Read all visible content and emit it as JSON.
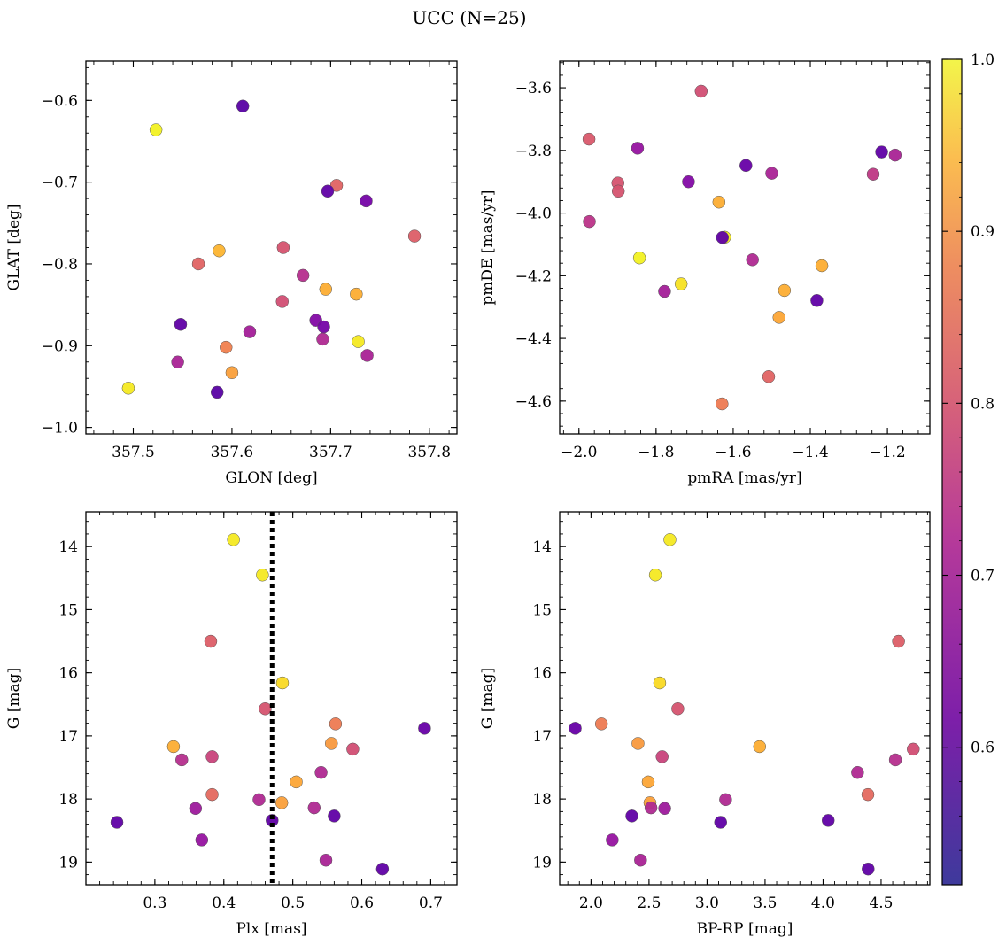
{
  "figure": {
    "title": "UCC (N=25)"
  },
  "chart_data": [
    {
      "type": "scatter",
      "xlabel": "GLON [deg]",
      "ylabel": "GLAT [deg]",
      "xlim": [
        357.452,
        357.828
      ],
      "ylim": [
        -1.008,
        -0.552
      ],
      "y_inverted": false,
      "xticks": [
        357.5,
        357.6,
        357.7,
        357.8
      ],
      "xtick_labels": [
        "357.5",
        "357.6",
        "357.7",
        "357.8"
      ],
      "yticks": [
        -0.6,
        -0.7,
        -0.8,
        -0.9,
        -1.0
      ],
      "ytick_labels": [
        "−0.6",
        "−0.7",
        "−0.8",
        "−0.9",
        "−1.0"
      ],
      "points": [
        {
          "x": 357.523,
          "y": -0.636,
          "c": 0.99
        },
        {
          "x": 357.495,
          "y": -0.952,
          "c": 0.98
        },
        {
          "x": 357.728,
          "y": -0.895,
          "c": 0.98
        },
        {
          "x": 357.587,
          "y": -0.784,
          "c": 0.91
        },
        {
          "x": 357.695,
          "y": -0.831,
          "c": 0.9
        },
        {
          "x": 357.726,
          "y": -0.837,
          "c": 0.9
        },
        {
          "x": 357.6,
          "y": -0.933,
          "c": 0.88
        },
        {
          "x": 357.594,
          "y": -0.902,
          "c": 0.83
        },
        {
          "x": 357.566,
          "y": -0.8,
          "c": 0.78
        },
        {
          "x": 357.706,
          "y": -0.704,
          "c": 0.78
        },
        {
          "x": 357.785,
          "y": -0.766,
          "c": 0.77
        },
        {
          "x": 357.652,
          "y": -0.78,
          "c": 0.75
        },
        {
          "x": 357.651,
          "y": -0.846,
          "c": 0.74
        },
        {
          "x": 357.672,
          "y": -0.814,
          "c": 0.68
        },
        {
          "x": 357.692,
          "y": -0.892,
          "c": 0.67
        },
        {
          "x": 357.737,
          "y": -0.912,
          "c": 0.66
        },
        {
          "x": 357.545,
          "y": -0.92,
          "c": 0.66
        },
        {
          "x": 357.618,
          "y": -0.883,
          "c": 0.65
        },
        {
          "x": 357.685,
          "y": -0.869,
          "c": 0.6
        },
        {
          "x": 357.693,
          "y": -0.877,
          "c": 0.58
        },
        {
          "x": 357.736,
          "y": -0.723,
          "c": 0.58
        },
        {
          "x": 357.697,
          "y": -0.711,
          "c": 0.55
        },
        {
          "x": 357.548,
          "y": -0.874,
          "c": 0.55
        },
        {
          "x": 357.611,
          "y": -0.607,
          "c": 0.54
        },
        {
          "x": 357.585,
          "y": -0.957,
          "c": 0.54
        }
      ]
    },
    {
      "type": "scatter",
      "xlabel": "pmRA [mas/yr]",
      "ylabel": "pmDE [mas/yr]",
      "xlim": [
        -2.05,
        -1.09
      ],
      "ylim": [
        -4.705,
        -3.515
      ],
      "y_inverted": false,
      "xticks": [
        -2.0,
        -1.8,
        -1.6,
        -1.4,
        -1.2
      ],
      "xtick_labels": [
        "−2.0",
        "−1.8",
        "−1.6",
        "−1.4",
        "−1.2"
      ],
      "yticks": [
        -3.6,
        -3.8,
        -4.0,
        -4.2,
        -4.4,
        -4.6
      ],
      "ytick_labels": [
        "−3.6",
        "−3.8",
        "−4.0",
        "−4.2",
        "−4.4",
        "−4.6"
      ],
      "points": [
        {
          "x": -1.843,
          "y": -4.143,
          "c": 0.99
        },
        {
          "x": -1.622,
          "y": -4.077,
          "c": 0.98
        },
        {
          "x": -1.735,
          "y": -4.226,
          "c": 0.97
        },
        {
          "x": -1.637,
          "y": -3.965,
          "c": 0.9
        },
        {
          "x": -1.467,
          "y": -4.247,
          "c": 0.9
        },
        {
          "x": -1.37,
          "y": -4.168,
          "c": 0.9
        },
        {
          "x": -1.481,
          "y": -4.333,
          "c": 0.89
        },
        {
          "x": -1.629,
          "y": -4.609,
          "c": 0.82
        },
        {
          "x": -1.508,
          "y": -4.522,
          "c": 0.78
        },
        {
          "x": -1.974,
          "y": -3.764,
          "c": 0.76
        },
        {
          "x": -1.899,
          "y": -3.904,
          "c": 0.75
        },
        {
          "x": -1.898,
          "y": -3.93,
          "c": 0.75
        },
        {
          "x": -1.683,
          "y": -3.611,
          "c": 0.74
        },
        {
          "x": -1.237,
          "y": -3.876,
          "c": 0.7
        },
        {
          "x": -1.973,
          "y": -4.027,
          "c": 0.69
        },
        {
          "x": -1.55,
          "y": -4.149,
          "c": 0.67
        },
        {
          "x": -1.5,
          "y": -3.873,
          "c": 0.66
        },
        {
          "x": -1.18,
          "y": -3.815,
          "c": 0.66
        },
        {
          "x": -1.778,
          "y": -4.25,
          "c": 0.65
        },
        {
          "x": -1.848,
          "y": -3.793,
          "c": 0.63
        },
        {
          "x": -1.716,
          "y": -3.9,
          "c": 0.6
        },
        {
          "x": -1.567,
          "y": -3.848,
          "c": 0.56
        },
        {
          "x": -1.628,
          "y": -4.078,
          "c": 0.55
        },
        {
          "x": -1.383,
          "y": -4.279,
          "c": 0.55
        },
        {
          "x": -1.215,
          "y": -3.805,
          "c": 0.55
        }
      ]
    },
    {
      "type": "scatter",
      "xlabel": "Plx [mas]",
      "ylabel": "G [mag]",
      "xlim": [
        0.2,
        0.738
      ],
      "ylim": [
        19.36,
        13.45
      ],
      "y_inverted": true,
      "xticks": [
        0.3,
        0.4,
        0.5,
        0.6,
        0.7
      ],
      "xtick_labels": [
        "0.3",
        "0.4",
        "0.5",
        "0.6",
        "0.7"
      ],
      "yticks": [
        14,
        15,
        16,
        17,
        18,
        19
      ],
      "ytick_labels": [
        "14",
        "15",
        "16",
        "17",
        "18",
        "19"
      ],
      "vline": 0.47,
      "points": [
        {
          "x": 0.414,
          "y": 13.89,
          "c": 0.98
        },
        {
          "x": 0.456,
          "y": 14.45,
          "c": 0.98
        },
        {
          "x": 0.485,
          "y": 16.16,
          "c": 0.96
        },
        {
          "x": 0.327,
          "y": 17.17,
          "c": 0.9
        },
        {
          "x": 0.505,
          "y": 17.73,
          "c": 0.89
        },
        {
          "x": 0.484,
          "y": 18.06,
          "c": 0.88
        },
        {
          "x": 0.556,
          "y": 17.12,
          "c": 0.87
        },
        {
          "x": 0.562,
          "y": 16.81,
          "c": 0.82
        },
        {
          "x": 0.383,
          "y": 17.93,
          "c": 0.79
        },
        {
          "x": 0.381,
          "y": 15.5,
          "c": 0.77
        },
        {
          "x": 0.46,
          "y": 16.57,
          "c": 0.75
        },
        {
          "x": 0.587,
          "y": 17.21,
          "c": 0.74
        },
        {
          "x": 0.383,
          "y": 17.33,
          "c": 0.72
        },
        {
          "x": 0.339,
          "y": 17.38,
          "c": 0.68
        },
        {
          "x": 0.541,
          "y": 17.58,
          "c": 0.67
        },
        {
          "x": 0.451,
          "y": 18.01,
          "c": 0.67
        },
        {
          "x": 0.531,
          "y": 18.14,
          "c": 0.67
        },
        {
          "x": 0.548,
          "y": 18.97,
          "c": 0.66
        },
        {
          "x": 0.359,
          "y": 18.15,
          "c": 0.64
        },
        {
          "x": 0.368,
          "y": 18.65,
          "c": 0.63
        },
        {
          "x": 0.691,
          "y": 16.88,
          "c": 0.56
        },
        {
          "x": 0.245,
          "y": 18.37,
          "c": 0.55
        },
        {
          "x": 0.47,
          "y": 18.34,
          "c": 0.55
        },
        {
          "x": 0.56,
          "y": 18.27,
          "c": 0.55
        },
        {
          "x": 0.63,
          "y": 19.11,
          "c": 0.55
        }
      ]
    },
    {
      "type": "scatter",
      "xlabel": "BP-RP [mag]",
      "ylabel": "G [mag]",
      "xlim": [
        1.73,
        4.92
      ],
      "ylim": [
        19.36,
        13.45
      ],
      "y_inverted": true,
      "xticks": [
        2.0,
        2.5,
        3.0,
        3.5,
        4.0,
        4.5
      ],
      "xtick_labels": [
        "2.0",
        "2.5",
        "3.0",
        "3.5",
        "4.0",
        "4.5"
      ],
      "yticks": [
        14,
        15,
        16,
        17,
        18,
        19
      ],
      "ytick_labels": [
        "14",
        "15",
        "16",
        "17",
        "18",
        "19"
      ],
      "points": [
        {
          "x": 2.68,
          "y": 13.89,
          "c": 0.98
        },
        {
          "x": 2.555,
          "y": 14.45,
          "c": 0.98
        },
        {
          "x": 2.592,
          "y": 16.16,
          "c": 0.96
        },
        {
          "x": 3.453,
          "y": 17.17,
          "c": 0.9
        },
        {
          "x": 2.493,
          "y": 17.73,
          "c": 0.89
        },
        {
          "x": 2.508,
          "y": 18.06,
          "c": 0.88
        },
        {
          "x": 2.405,
          "y": 17.12,
          "c": 0.87
        },
        {
          "x": 2.09,
          "y": 16.81,
          "c": 0.82
        },
        {
          "x": 4.386,
          "y": 17.93,
          "c": 0.79
        },
        {
          "x": 4.65,
          "y": 15.5,
          "c": 0.77
        },
        {
          "x": 2.748,
          "y": 16.57,
          "c": 0.75
        },
        {
          "x": 4.777,
          "y": 17.21,
          "c": 0.74
        },
        {
          "x": 2.613,
          "y": 17.33,
          "c": 0.72
        },
        {
          "x": 4.623,
          "y": 17.38,
          "c": 0.68
        },
        {
          "x": 4.297,
          "y": 17.58,
          "c": 0.67
        },
        {
          "x": 3.16,
          "y": 18.01,
          "c": 0.67
        },
        {
          "x": 2.517,
          "y": 18.14,
          "c": 0.67
        },
        {
          "x": 2.427,
          "y": 18.97,
          "c": 0.66
        },
        {
          "x": 2.635,
          "y": 18.15,
          "c": 0.64
        },
        {
          "x": 2.183,
          "y": 18.65,
          "c": 0.63
        },
        {
          "x": 1.864,
          "y": 16.88,
          "c": 0.56
        },
        {
          "x": 3.117,
          "y": 18.37,
          "c": 0.55
        },
        {
          "x": 4.044,
          "y": 18.34,
          "c": 0.55
        },
        {
          "x": 2.352,
          "y": 18.27,
          "c": 0.55
        },
        {
          "x": 4.388,
          "y": 19.11,
          "c": 0.55
        }
      ]
    }
  ],
  "colorbar": {
    "colormap": "plasma",
    "range": [
      0.52,
      1.0
    ],
    "ticks": [
      0.6,
      0.7,
      0.8,
      0.9,
      1.0
    ],
    "tick_labels": [
      "0.6",
      "0.7",
      "0.8",
      "0.9",
      "1.0"
    ]
  }
}
